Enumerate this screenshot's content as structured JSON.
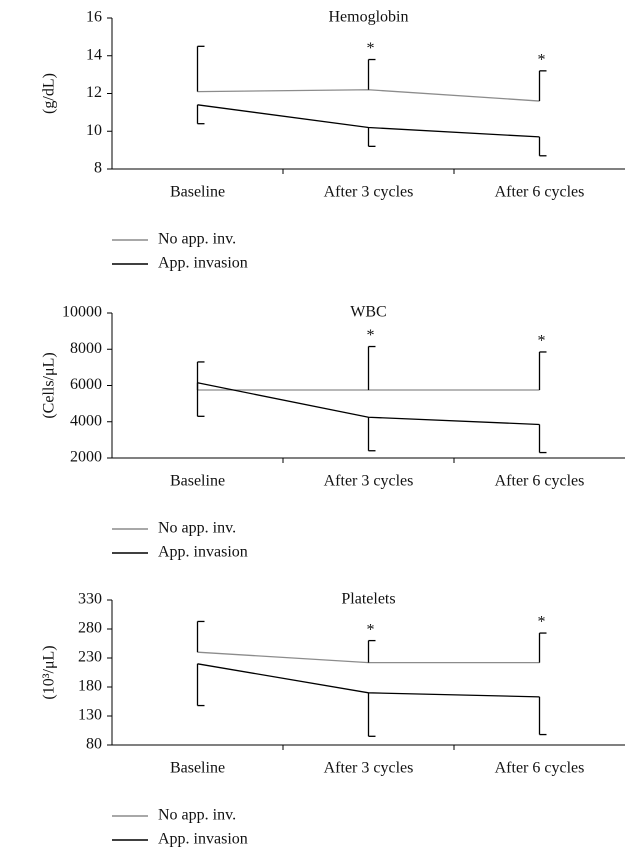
{
  "chart_data": [
    {
      "type": "line",
      "title": "Hemoglobin",
      "ylabel": "(g/dL)",
      "categories": [
        "Baseline",
        "After 3 cycles",
        "After 6 cycles"
      ],
      "significance": [
        null,
        "*",
        "*"
      ],
      "ylim": [
        8,
        16
      ],
      "yticks": [
        8,
        10,
        12,
        14,
        16
      ],
      "series": [
        {
          "name": "No app. inv.",
          "color": "#8c8c8c",
          "values": [
            12.1,
            12.2,
            11.6
          ],
          "errors": [
            2.4,
            1.6,
            1.6
          ],
          "error_direction": "up"
        },
        {
          "name": "App. invasion",
          "color": "#000000",
          "values": [
            11.4,
            10.2,
            9.7
          ],
          "errors": [
            1.0,
            1.0,
            1.0
          ],
          "error_direction": "down"
        }
      ]
    },
    {
      "type": "line",
      "title": "WBC",
      "ylabel": "(Cells/μL)",
      "categories": [
        "Baseline",
        "After 3 cycles",
        "After 6 cycles"
      ],
      "significance": [
        null,
        "*",
        "*"
      ],
      "ylim": [
        2000,
        10000
      ],
      "yticks": [
        2000,
        4000,
        6000,
        8000,
        10000
      ],
      "series": [
        {
          "name": "No app. inv.",
          "color": "#8c8c8c",
          "values": [
            5750,
            5750,
            5750
          ],
          "errors": [
            1550,
            2400,
            2100
          ],
          "error_direction": "up"
        },
        {
          "name": "App. invasion",
          "color": "#000000",
          "values": [
            6150,
            4250,
            3850
          ],
          "errors": [
            1850,
            1850,
            1550
          ],
          "error_direction": "down"
        }
      ]
    },
    {
      "type": "line",
      "title": "Platelets",
      "ylabel": "(10³/μL)",
      "categories": [
        "Baseline",
        "After 3 cycles",
        "After 6 cycles"
      ],
      "significance": [
        null,
        "*",
        "*"
      ],
      "ylim": [
        80,
        330
      ],
      "yticks": [
        80,
        130,
        180,
        230,
        280,
        330
      ],
      "series": [
        {
          "name": "No app. inv.",
          "color": "#8c8c8c",
          "values": [
            240,
            222,
            222
          ],
          "errors": [
            53,
            38,
            51
          ],
          "error_direction": "up"
        },
        {
          "name": "App. invasion",
          "color": "#000000",
          "values": [
            220,
            170,
            163
          ],
          "errors": [
            72,
            75,
            65
          ],
          "error_direction": "down"
        }
      ]
    }
  ]
}
